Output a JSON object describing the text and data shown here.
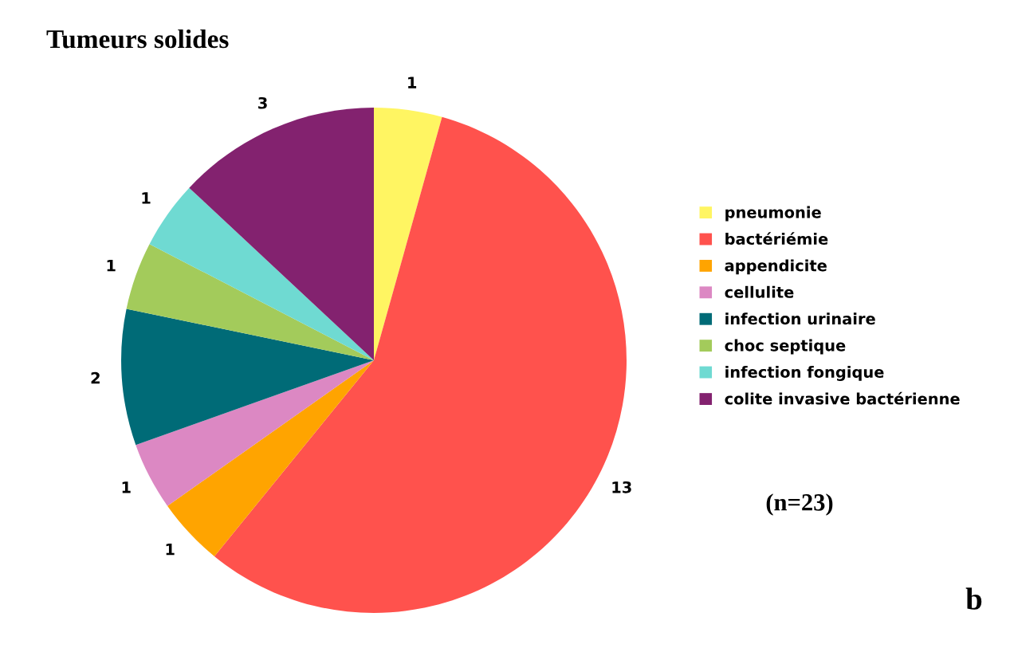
{
  "chart_data": {
    "type": "pie",
    "title": "Tumeurs solides",
    "categories": [
      "pneumonie",
      "bactériémie",
      "appendicite",
      "cellulite",
      "infection urinaire",
      "choc septique",
      "infection fongique",
      "colite invasive bactérienne"
    ],
    "values": [
      1,
      13,
      1,
      1,
      2,
      1,
      1,
      3
    ],
    "colors": [
      "#fff562",
      "#ff524d",
      "#ffa400",
      "#dc88c3",
      "#006b77",
      "#a3cb5b",
      "#6fdad2",
      "#83226f"
    ],
    "data_labels": true,
    "legend": "right",
    "annotations": [
      "(n=23)",
      "b"
    ]
  }
}
